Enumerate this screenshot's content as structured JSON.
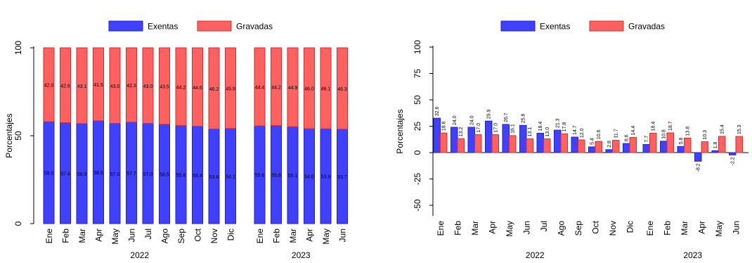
{
  "colors": {
    "exentas_fill": "#4040ff",
    "exentas_edge": "#2020cc",
    "gravadas_fill": "#ff6060",
    "gravadas_edge": "#cc3030",
    "axis": "#000000"
  },
  "chart_data": [
    {
      "type": "bar",
      "stacked": true,
      "ylabel": "Porcentajes",
      "ylim": [
        0,
        100
      ],
      "yticks": [
        0,
        50,
        100
      ],
      "legend": {
        "placement": "top-center"
      },
      "groups": [
        "2022",
        "2023"
      ],
      "categories": [
        "Ene",
        "Feb",
        "Mar",
        "Apr",
        "May",
        "Jun",
        "Jul",
        "Ago",
        "Sep",
        "Oct",
        "Nov",
        "Dic",
        "Ene",
        "Feb",
        "Mar",
        "Apr",
        "May",
        "Jun"
      ],
      "series": [
        {
          "name": "Exentas",
          "values": [
            58.0,
            57.4,
            56.9,
            58.5,
            57.0,
            57.7,
            57.0,
            56.5,
            55.8,
            55.4,
            53.8,
            54.1,
            55.6,
            55.8,
            55.1,
            54.0,
            53.9,
            53.7
          ],
          "labels": [
            "58.0",
            "57.4",
            "56.9",
            "58.5",
            "57.0",
            "57.7",
            "57.0",
            "56.5",
            "55.8",
            "55.4",
            "53.8",
            "54.1",
            "55.6",
            "55.8",
            "55.1",
            "54.0",
            "53.9",
            "53.7"
          ]
        },
        {
          "name": "Gravadas",
          "values": [
            42.0,
            42.6,
            43.1,
            41.5,
            43.0,
            42.3,
            43.0,
            43.5,
            44.2,
            44.6,
            46.2,
            45.9,
            44.4,
            44.2,
            44.9,
            46.0,
            46.1,
            46.3
          ],
          "labels": [
            "42.0",
            "42.6",
            "43.1",
            "41.5",
            "43.0",
            "42.3",
            "43.0",
            "43.5",
            "44.2",
            "44.6",
            "46.2",
            "45.9",
            "44.4",
            "44.2",
            "44.9",
            "46.0",
            "46.1",
            "46.3"
          ]
        }
      ]
    },
    {
      "type": "bar",
      "stacked": false,
      "ylabel": "Porcentajes",
      "ylim": [
        -60,
        100
      ],
      "yticks": [
        -50,
        -25,
        0,
        25,
        50,
        75,
        100
      ],
      "legend": {
        "placement": "top-center"
      },
      "groups": [
        "2022",
        "2023"
      ],
      "categories": [
        "Ene",
        "Feb",
        "Mar",
        "Apr",
        "May",
        "Jun",
        "Jul",
        "Ago",
        "Sep",
        "Oct",
        "Nov",
        "Dic",
        "Ene",
        "Feb",
        "Mar",
        "Apr",
        "May",
        "Jun"
      ],
      "series": [
        {
          "name": "Exentas",
          "values": [
            32.6,
            24.0,
            24.0,
            29.9,
            26.7,
            25.8,
            18.4,
            21.3,
            14.7,
            5.4,
            2.8,
            8.6,
            7.7,
            10.8,
            5.8,
            -8.2,
            1.8,
            -2.2
          ],
          "labels": [
            "32.6",
            "24.0",
            "24.0",
            "29.9",
            "26.7",
            "25.8",
            "18.4",
            "21.3",
            "14.7",
            "5.4",
            "2.8",
            "8.6",
            "7.7",
            "10.8",
            "5.8",
            "-8.2",
            "1.8",
            "-2.2"
          ]
        },
        {
          "name": "Gravadas",
          "values": [
            18.6,
            13.2,
            17.0,
            17.0,
            16.1,
            13.1,
            13.0,
            17.8,
            12.0,
            10.6,
            11.7,
            14.4,
            18.4,
            18.7,
            13.8,
            10.3,
            15.4,
            15.3
          ],
          "labels": [
            "18.6",
            "13.2",
            "17.0",
            "17.0",
            "16.1",
            "13.1",
            "13.0",
            "17.8",
            "12.0",
            "10.6",
            "11.7",
            "14.4",
            "18.4",
            "18.7",
            "13.8",
            "10.3",
            "15.4",
            "15.3"
          ]
        }
      ]
    }
  ]
}
